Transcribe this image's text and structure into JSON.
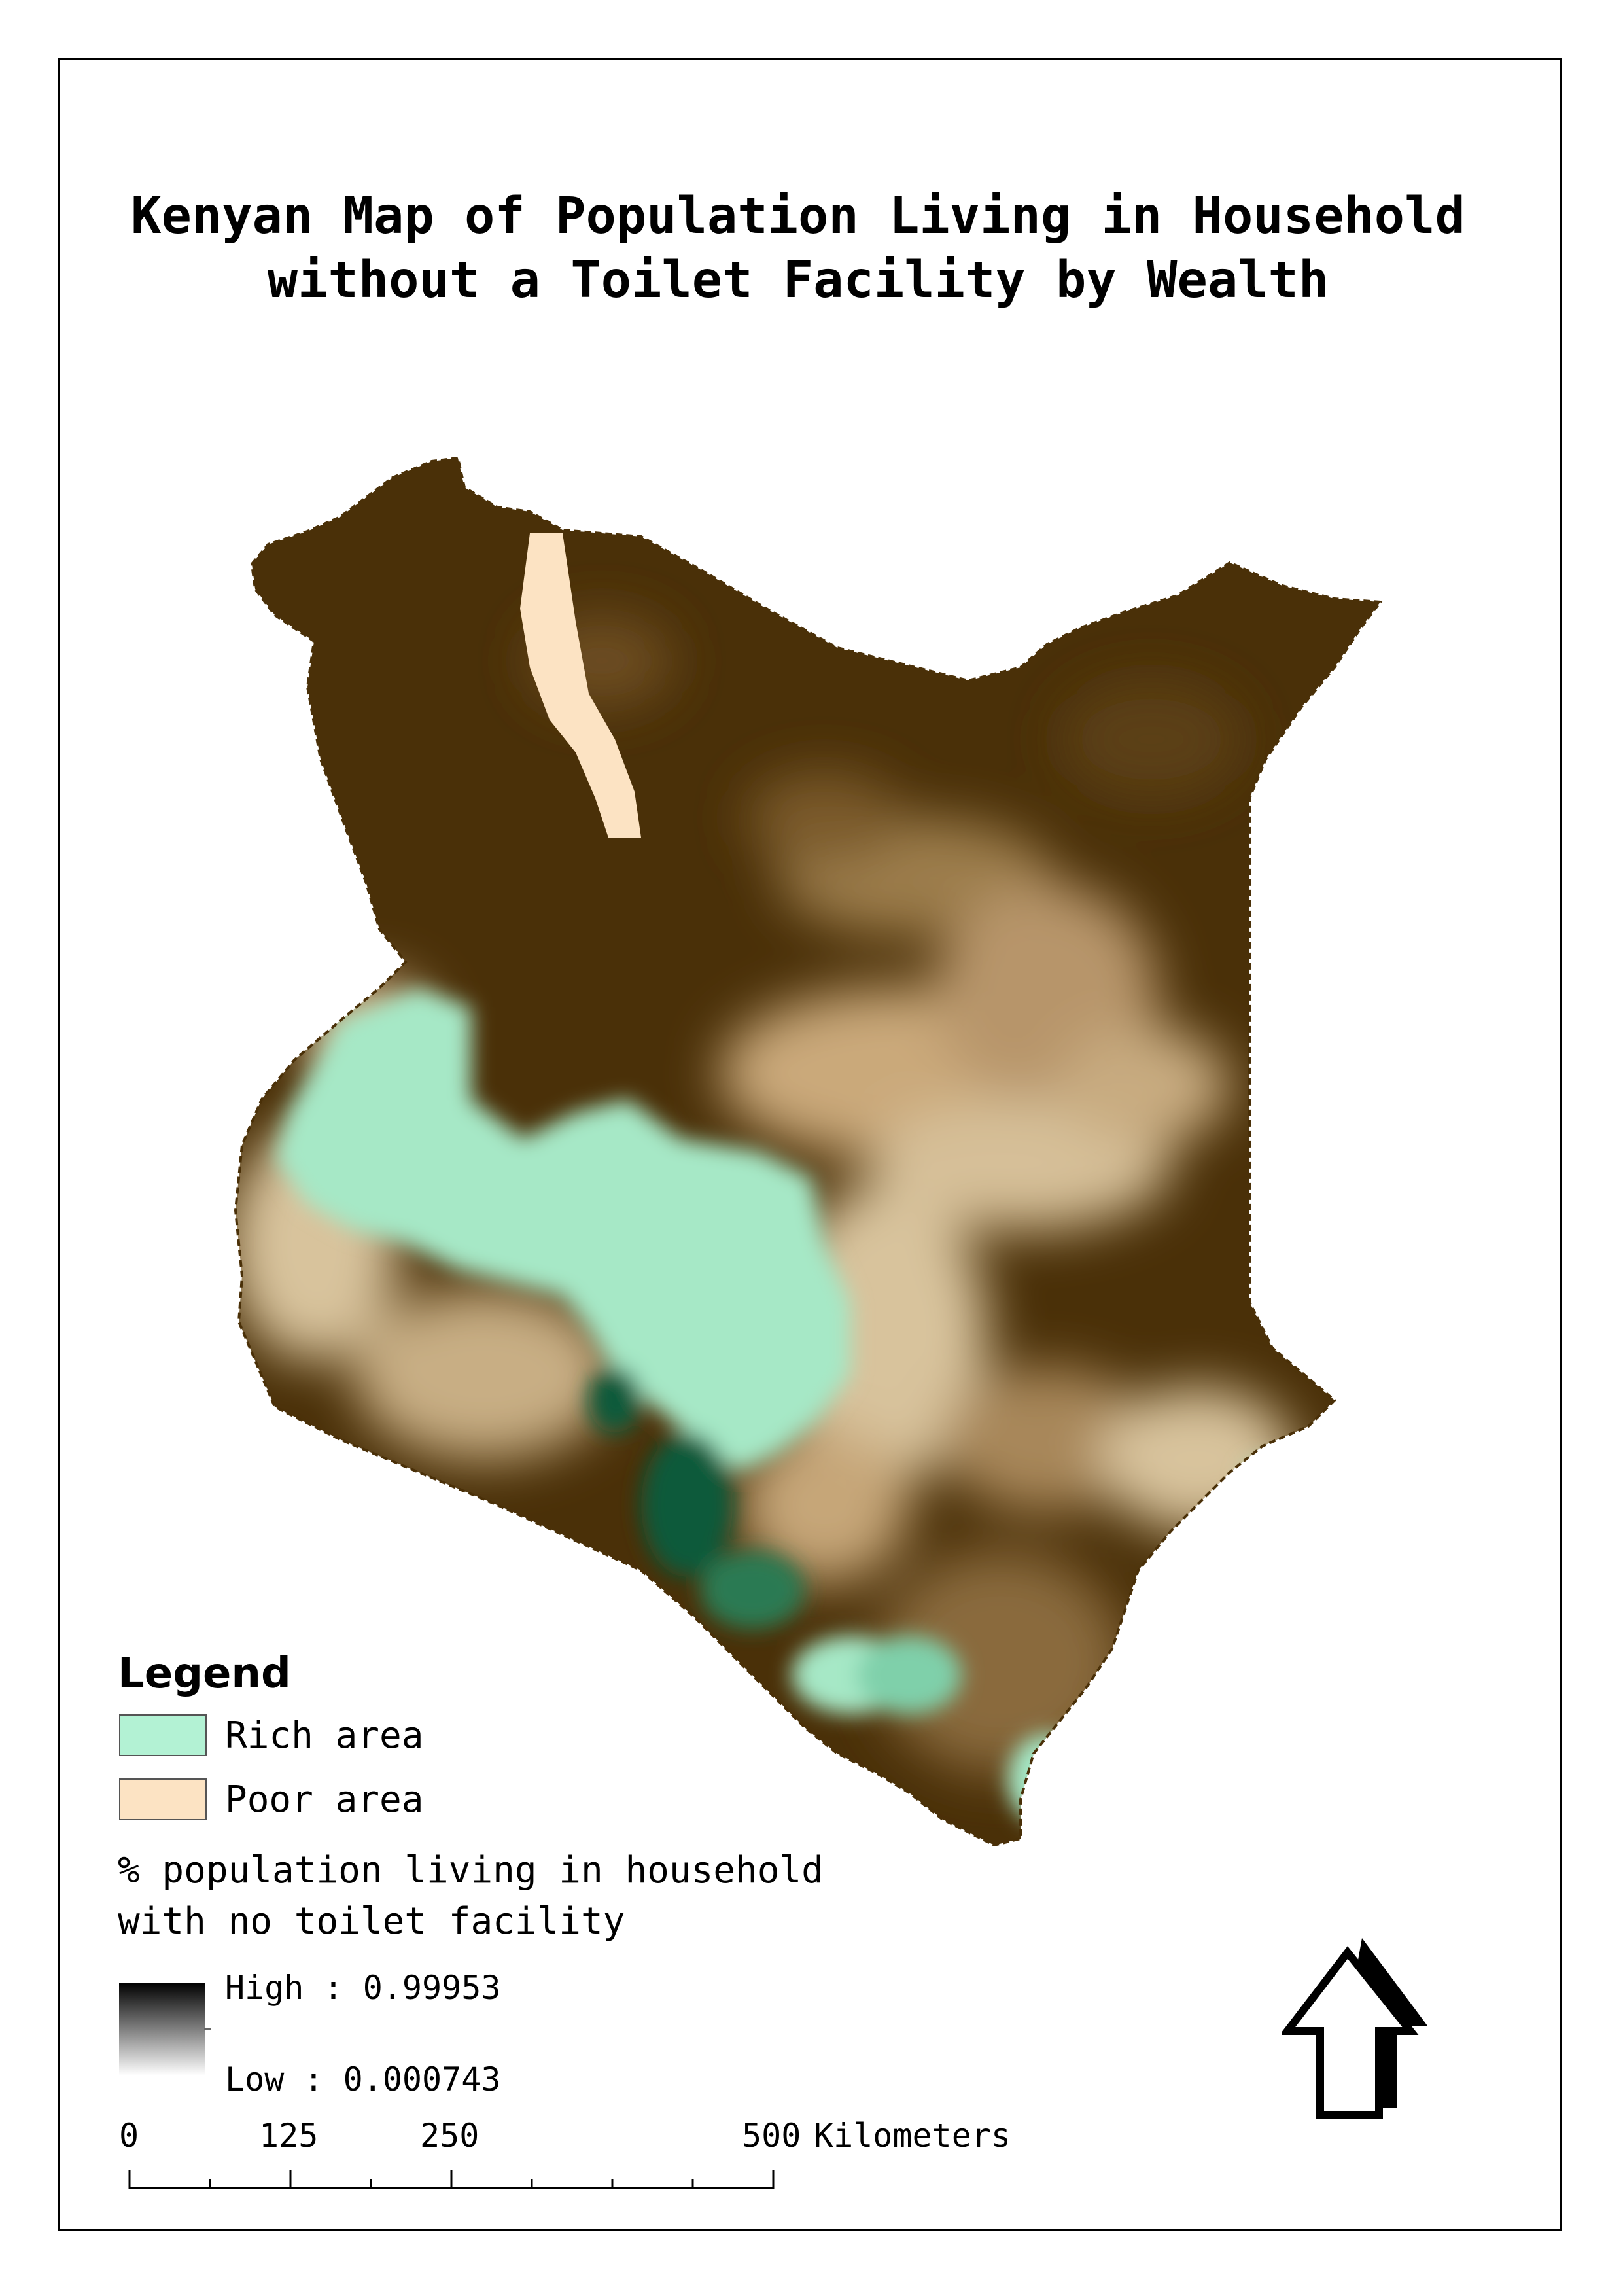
{
  "map": {
    "title_line1": "Kenyan Map of Population Living in Household",
    "title_line2": "without a Toilet Facility by Wealth"
  },
  "legend": {
    "heading": "Legend",
    "classes": [
      {
        "label": "Rich area",
        "color": "#b3f2d4"
      },
      {
        "label": "Poor area",
        "color": "#fce3c3"
      }
    ],
    "raster_title_line1": "% population living in household",
    "raster_title_line2": "with no toilet facility",
    "ramp": {
      "high_label": "High : 0.99953",
      "low_label": "Low : 0.000743",
      "high_color": "#000000",
      "low_color": "#ffffff"
    }
  },
  "scale_bar": {
    "labels": [
      "0",
      "125",
      "250",
      "500"
    ],
    "unit": "Kilometers"
  },
  "map_colors": {
    "dark_brown": "#4a3008",
    "mid_brown": "#7a5a2c",
    "tan": "#d8c39c",
    "rich_green": "#a6e8c6",
    "dark_green": "#0f5a3a"
  },
  "north_arrow_icon": "north-arrow-icon"
}
